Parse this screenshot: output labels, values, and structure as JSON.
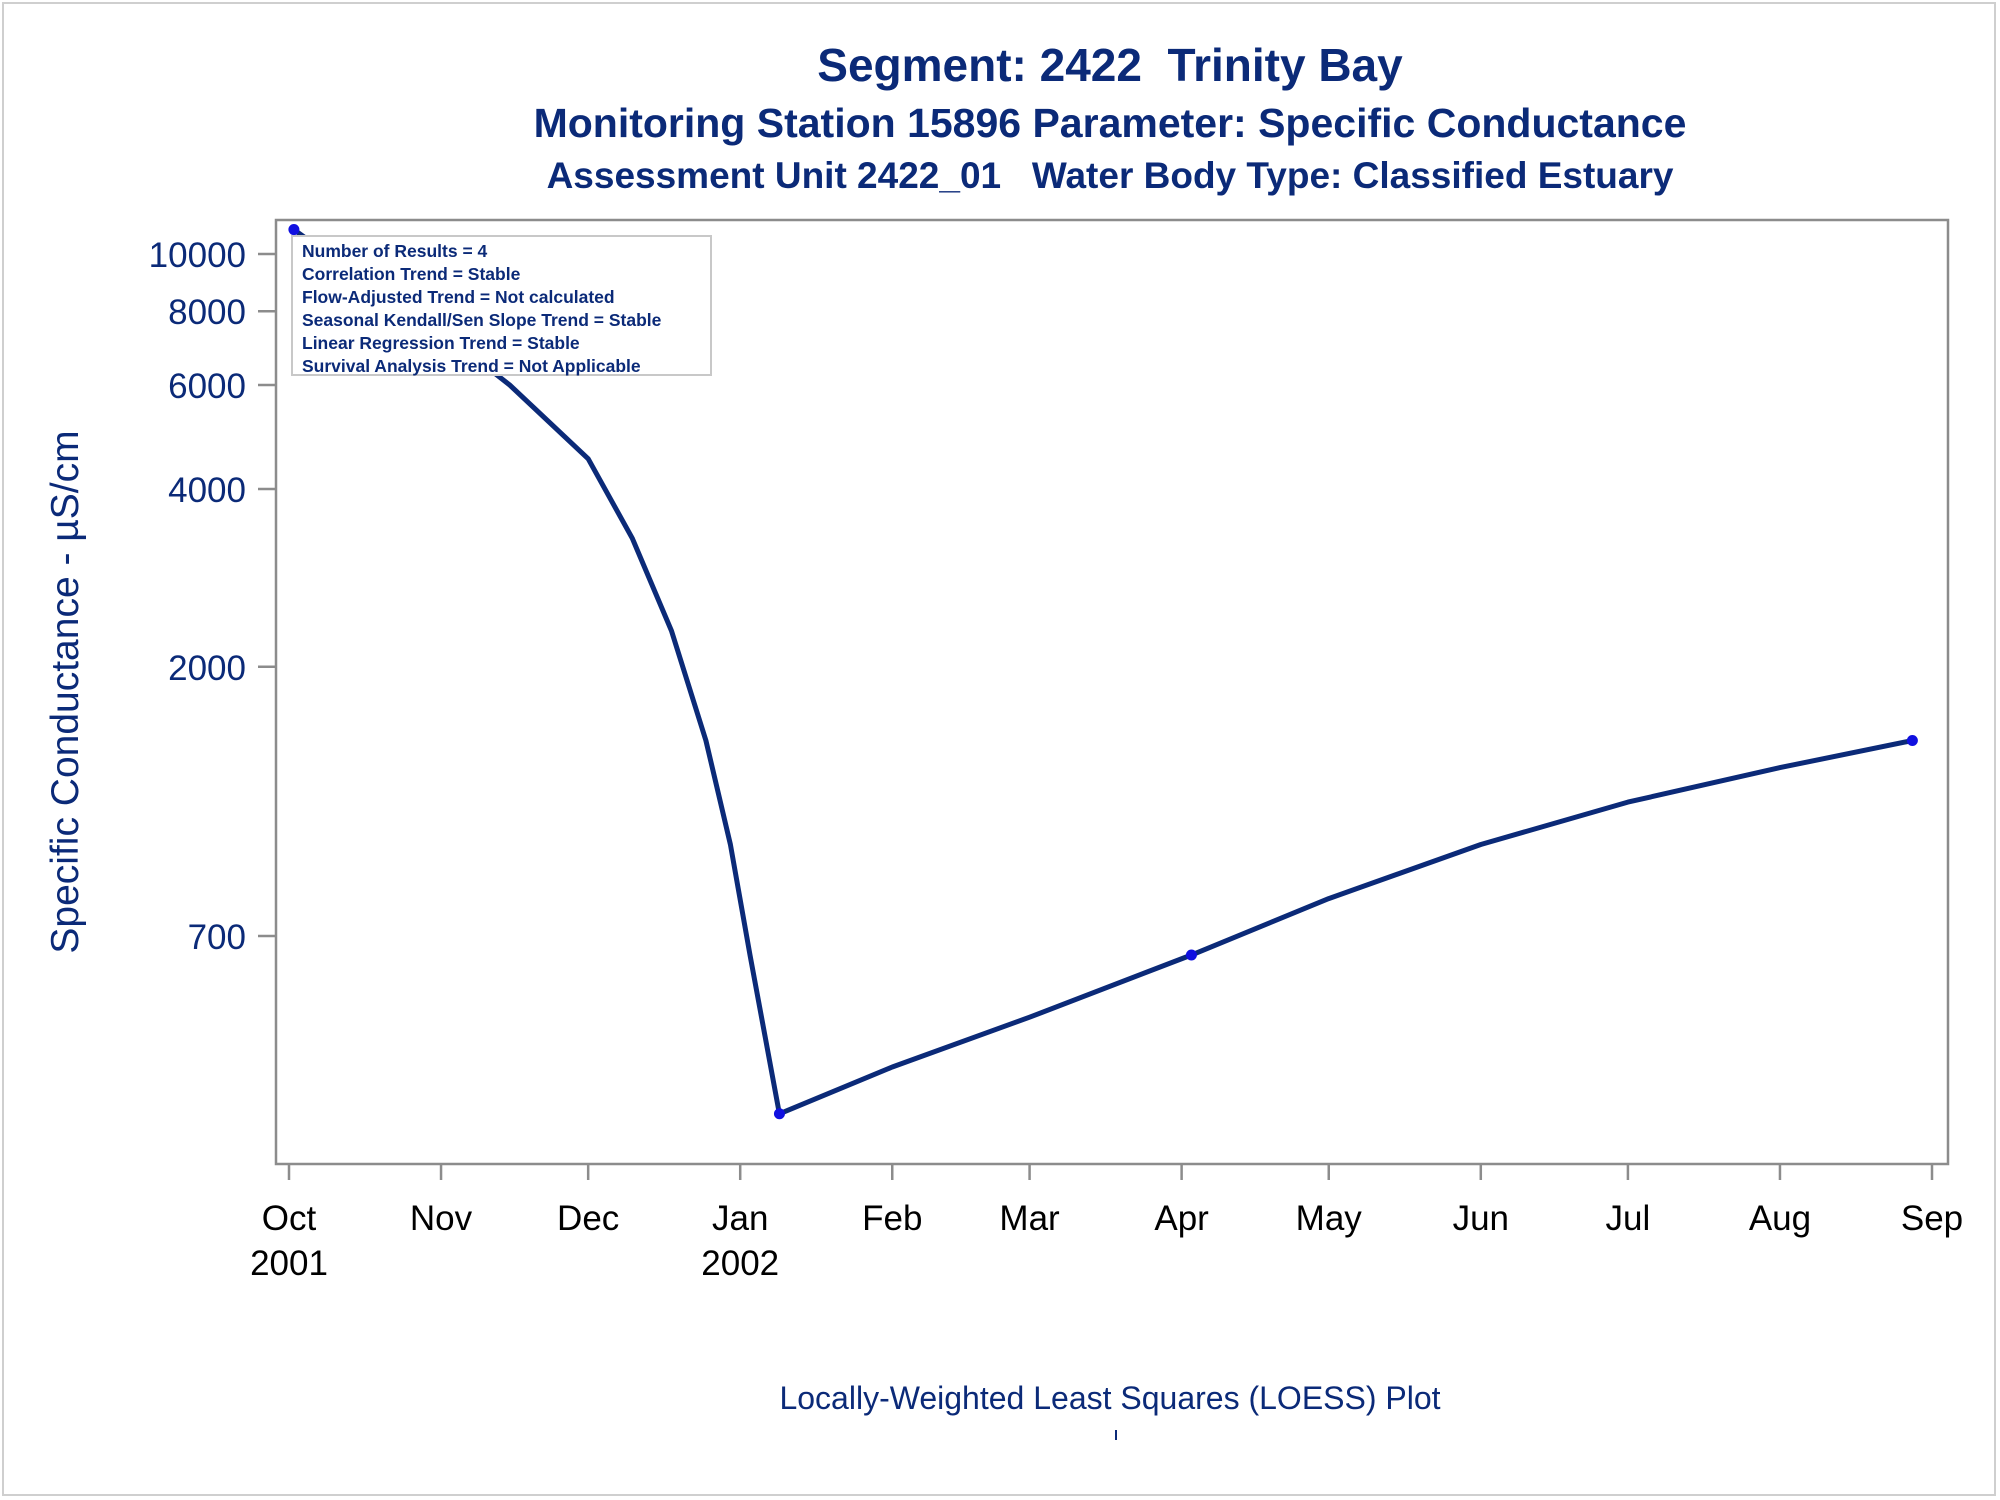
{
  "titles": {
    "line1": "Segment: 2422  Trinity Bay",
    "line2": "Monitoring Station 15896 Parameter: Specific Conductance",
    "line3": "Assessment Unit 2422_01   Water Body Type: Classified Estuary"
  },
  "footnote": "Locally-Weighted Least Squares (LOESS) Plot",
  "stats": [
    "Number of Results = 4",
    "Correlation Trend = Stable",
    "Flow-Adjusted Trend = Not calculated",
    "Seasonal Kendall/Sen Slope Trend = Stable",
    "Linear Regression Trend = Stable",
    "Survival Analysis Trend = Not Applicable"
  ],
  "colors": {
    "text": "#0b2a78",
    "line": "#0b2a78",
    "marker": "#1010e0",
    "axis": "#8c8c8c"
  },
  "chart_data": {
    "type": "line",
    "ylabel": "Specific Conductance -  µS/cm",
    "yscale": "log",
    "yticks": [
      700,
      2000,
      4000,
      6000,
      8000,
      10000
    ],
    "xticks": [
      {
        "date": "2001-10-01",
        "label": "Oct",
        "sub": "2001"
      },
      {
        "date": "2001-11-01",
        "label": "Nov",
        "sub": ""
      },
      {
        "date": "2001-12-01",
        "label": "Dec",
        "sub": ""
      },
      {
        "date": "2002-01-01",
        "label": "Jan",
        "sub": "2002"
      },
      {
        "date": "2002-02-01",
        "label": "Feb",
        "sub": ""
      },
      {
        "date": "2002-03-01",
        "label": "Mar",
        "sub": ""
      },
      {
        "date": "2002-04-01",
        "label": "Apr",
        "sub": ""
      },
      {
        "date": "2002-05-01",
        "label": "May",
        "sub": ""
      },
      {
        "date": "2002-06-01",
        "label": "Jun",
        "sub": ""
      },
      {
        "date": "2002-07-01",
        "label": "Jul",
        "sub": ""
      },
      {
        "date": "2002-08-01",
        "label": "Aug",
        "sub": ""
      },
      {
        "date": "2002-09-01",
        "label": "Sep",
        "sub": ""
      }
    ],
    "points": [
      {
        "x": "2001-10-02",
        "y": 11000
      },
      {
        "x": "2002-01-09",
        "y": 350
      },
      {
        "x": "2002-04-03",
        "y": 650
      },
      {
        "x": "2002-08-28",
        "y": 1500
      }
    ],
    "loess": [
      {
        "x": "2001-10-02",
        "y": 11000
      },
      {
        "x": "2001-10-15",
        "y": 9200
      },
      {
        "x": "2001-11-01",
        "y": 7400
      },
      {
        "x": "2001-11-15",
        "y": 6000
      },
      {
        "x": "2001-12-01",
        "y": 4500
      },
      {
        "x": "2001-12-10",
        "y": 3300
      },
      {
        "x": "2001-12-18",
        "y": 2300
      },
      {
        "x": "2001-12-25",
        "y": 1500
      },
      {
        "x": "2001-12-30",
        "y": 1000
      },
      {
        "x": "2002-01-03",
        "y": 650
      },
      {
        "x": "2002-01-09",
        "y": 350
      },
      {
        "x": "2002-02-01",
        "y": 420
      },
      {
        "x": "2002-03-01",
        "y": 510
      },
      {
        "x": "2002-04-03",
        "y": 650
      },
      {
        "x": "2002-05-01",
        "y": 810
      },
      {
        "x": "2002-06-01",
        "y": 1000
      },
      {
        "x": "2002-07-01",
        "y": 1180
      },
      {
        "x": "2002-08-01",
        "y": 1350
      },
      {
        "x": "2002-08-28",
        "y": 1500
      }
    ]
  }
}
